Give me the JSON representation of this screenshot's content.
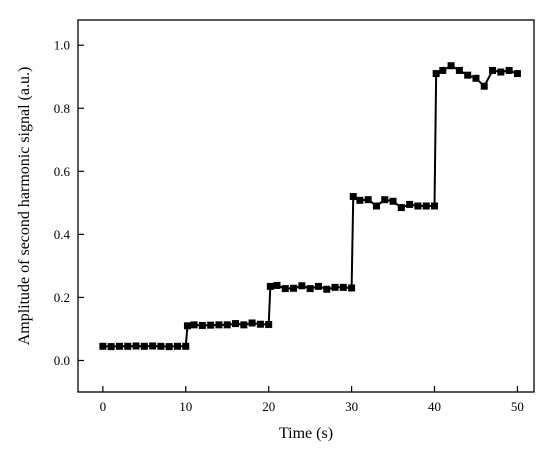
{
  "chart_data": {
    "type": "line",
    "title": "",
    "xlabel": "Time (s)",
    "ylabel": "Amplitude of second harmonic signal (a.u.)",
    "xlim": [
      -3,
      52
    ],
    "ylim": [
      -0.1,
      1.08
    ],
    "xticks": [
      0,
      10,
      20,
      30,
      40,
      50
    ],
    "yticks": [
      0.0,
      0.2,
      0.4,
      0.6,
      0.8,
      1.0
    ],
    "xtick_labels": [
      "0",
      "10",
      "20",
      "30",
      "40",
      "50"
    ],
    "ytick_labels": [
      "0.0",
      "0.2",
      "0.4",
      "0.6",
      "0.8",
      "1.0"
    ],
    "grid": false,
    "legend": "none",
    "marker": "square",
    "color": "#000000",
    "series": [
      {
        "x": [
          0,
          1,
          2,
          3,
          4,
          5,
          6,
          7,
          8,
          9,
          10,
          10.2,
          11,
          12,
          13,
          14,
          15,
          16,
          17,
          18,
          19,
          20,
          20.2,
          21,
          22,
          23,
          24,
          25,
          26,
          27,
          28,
          29,
          30,
          30.2,
          31,
          32,
          33,
          34,
          35,
          36,
          37,
          38,
          39,
          40,
          40.2,
          41,
          42,
          43,
          44,
          45,
          46,
          47,
          48,
          49,
          50
        ],
        "values": [
          0.045,
          0.044,
          0.045,
          0.045,
          0.046,
          0.045,
          0.046,
          0.045,
          0.044,
          0.045,
          0.045,
          0.11,
          0.113,
          0.111,
          0.112,
          0.113,
          0.113,
          0.117,
          0.113,
          0.119,
          0.115,
          0.114,
          0.235,
          0.238,
          0.228,
          0.229,
          0.237,
          0.228,
          0.235,
          0.226,
          0.232,
          0.232,
          0.23,
          0.52,
          0.508,
          0.51,
          0.49,
          0.51,
          0.505,
          0.485,
          0.495,
          0.49,
          0.49,
          0.49,
          0.91,
          0.92,
          0.935,
          0.92,
          0.905,
          0.895,
          0.87,
          0.92,
          0.915,
          0.92,
          0.91
        ]
      }
    ]
  }
}
